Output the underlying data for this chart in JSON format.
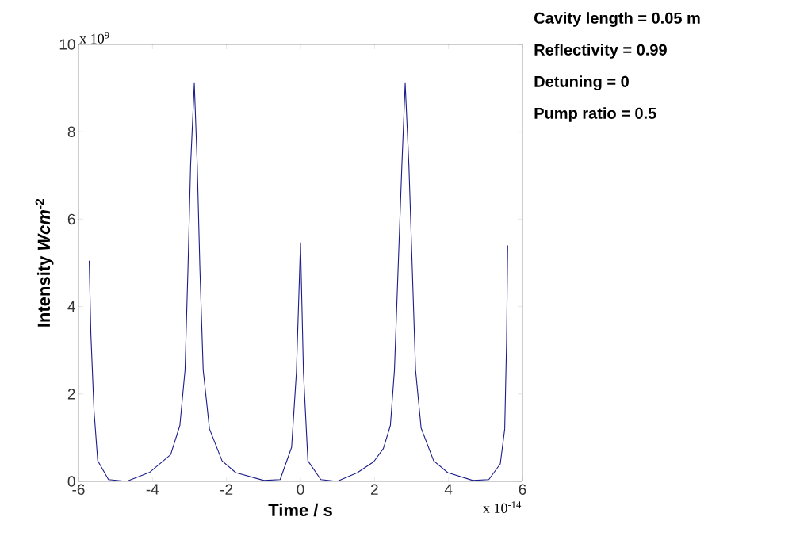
{
  "chart_data": {
    "type": "line",
    "xlabel": "Time / s",
    "ylabel": "Intensity  *Wcm*$^{-2}$",
    "xlim": [
      -6,
      6
    ],
    "ylim": [
      0,
      10
    ],
    "xticks": [
      -6,
      -4,
      -2,
      0,
      2,
      4,
      6
    ],
    "yticks": [
      0,
      2,
      4,
      6,
      8,
      10
    ],
    "grid": false,
    "marker": "none",
    "line_style": "solid",
    "annotations": [
      "x 10$^{9}$",
      "x 10$^{-14}$",
      "Cavity length = 0.05 m",
      "Reflectivity = 0.99",
      "Detuning = 0",
      "Pump ratio = 0.5"
    ],
    "series": [
      {
        "color": "#1c1c8a",
        "x": [
          -5.71,
          -5.665,
          -5.58,
          -5.48,
          -5.19,
          -4.7,
          -4.07,
          -3.51,
          -3.26,
          -3.12,
          -3.04,
          -2.97,
          -2.87,
          -2.79,
          -2.72,
          -2.63,
          -2.46,
          -2.12,
          -1.75,
          -0.99,
          -0.55,
          -0.24,
          -0.11,
          0.0,
          0.08,
          0.2,
          0.55,
          0.99,
          1.54,
          1.98,
          2.24,
          2.43,
          2.54,
          2.64,
          2.74,
          2.83,
          2.93,
          3.02,
          3.11,
          3.26,
          3.6,
          3.98,
          4.66,
          5.09,
          5.4,
          5.52,
          5.57,
          5.6
        ],
        "values": [
          5.05,
          3.36,
          1.61,
          0.47,
          0.04,
          0.0,
          0.21,
          0.61,
          1.28,
          2.55,
          4.9,
          7.23,
          9.11,
          7.23,
          4.9,
          2.55,
          1.2,
          0.47,
          0.2,
          0.02,
          0.04,
          0.78,
          2.5,
          5.46,
          2.5,
          0.47,
          0.04,
          0.0,
          0.2,
          0.45,
          0.75,
          1.28,
          2.55,
          4.9,
          7.23,
          9.11,
          7.23,
          4.9,
          2.55,
          1.22,
          0.47,
          0.2,
          0.02,
          0.04,
          0.4,
          1.2,
          3.2,
          5.4
        ]
      }
    ]
  }
}
